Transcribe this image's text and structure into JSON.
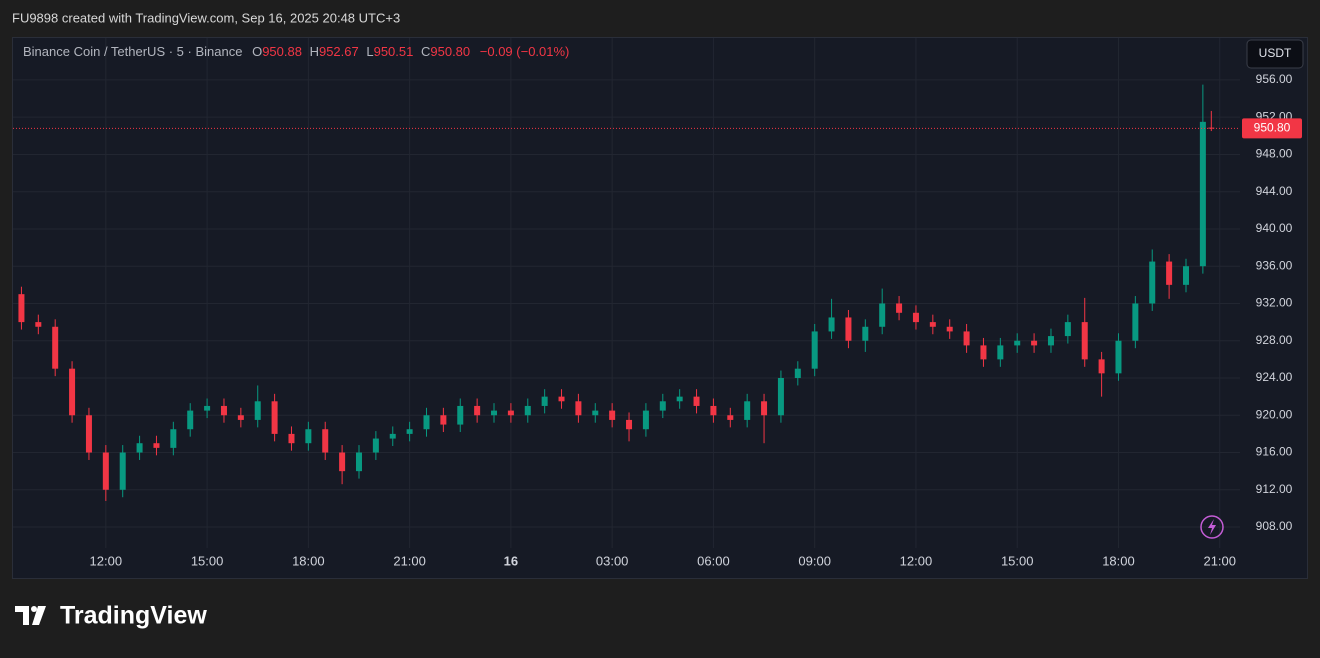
{
  "header": "FU9898 created with TradingView.com, Sep 16, 2025 20:48 UTC+3",
  "brand": "TradingView",
  "chart_data": {
    "type": "candlestick",
    "symbol": "Binance Coin / TetherUS · 5 · Binance",
    "ohlc_letters": [
      "O",
      "H",
      "L",
      "C"
    ],
    "last_labels": [
      "950.88",
      "952.67",
      "950.51",
      "950.80"
    ],
    "change": "−0.09 (−0.01%)",
    "currency": "USDT",
    "up_color": "#089981",
    "down_color": "#f23645",
    "grid": true,
    "x": [
      9.5,
      10,
      10.5,
      11,
      11.5,
      12,
      12.5,
      13,
      13.5,
      14,
      14.5,
      15,
      15.5,
      16,
      16.5,
      17,
      17.5,
      18,
      18.5,
      19,
      19.5,
      20,
      20.5,
      21,
      21.5,
      22,
      22.5,
      23,
      23.5,
      24,
      24.5,
      25,
      25.5,
      26,
      26.5,
      27,
      27.5,
      28,
      28.5,
      29,
      29.5,
      30,
      30.5,
      31,
      31.5,
      32,
      32.5,
      33,
      33.5,
      34,
      34.5,
      35,
      35.5,
      36,
      36.5,
      37,
      37.5,
      38,
      38.5,
      39,
      39.5,
      40,
      40.5,
      41,
      41.5,
      42,
      42.5,
      43,
      43.5,
      44,
      44.5,
      44.75
    ],
    "open": [
      933,
      930,
      929.5,
      925,
      920,
      916,
      912,
      916,
      917,
      916.5,
      918.5,
      920.5,
      921,
      920,
      919.5,
      921.5,
      918,
      917,
      918.5,
      916,
      914,
      916,
      917.5,
      918,
      918.5,
      920,
      919,
      921,
      920,
      920.5,
      920,
      921,
      922,
      921.5,
      920,
      920.5,
      919.5,
      918.5,
      920.5,
      921.5,
      922,
      921,
      920,
      919.5,
      921.5,
      920,
      924,
      925,
      929,
      930.5,
      928,
      929.5,
      932,
      931,
      930,
      929.5,
      929,
      927.5,
      926,
      927.5,
      928,
      927.5,
      928.5,
      930,
      926,
      924.5,
      928,
      932,
      936.5,
      934,
      936,
      950.88
    ],
    "high": [
      933.8,
      930.8,
      930.3,
      925.8,
      920.8,
      916.8,
      916.8,
      917.8,
      917.8,
      919.3,
      921.3,
      921.8,
      921.8,
      920.8,
      923.2,
      922.3,
      918.8,
      919.3,
      919.3,
      916.8,
      916.8,
      918.3,
      918.8,
      919.3,
      920.8,
      920.8,
      921.8,
      921.8,
      921.3,
      921.3,
      921.8,
      922.8,
      922.8,
      922.3,
      921.3,
      921.3,
      920.3,
      921.3,
      922.3,
      922.8,
      922.8,
      921.8,
      920.8,
      922.3,
      922.3,
      924.8,
      925.8,
      929.8,
      932.5,
      931.3,
      930.3,
      933.6,
      932.8,
      931.8,
      930.8,
      930.3,
      929.8,
      928.3,
      928.3,
      928.8,
      928.8,
      929.3,
      930.8,
      932.6,
      926.8,
      928.8,
      932.8,
      937.8,
      937.3,
      936.8,
      955.5,
      952.67
    ],
    "low": [
      929.2,
      928.7,
      924.2,
      919.2,
      915.2,
      910.8,
      911.2,
      915.2,
      915.7,
      915.7,
      917.7,
      919.7,
      919.2,
      918.7,
      918.7,
      917.2,
      916.2,
      916.2,
      915.2,
      912.6,
      913.2,
      915.2,
      916.7,
      917.2,
      917.7,
      918.2,
      918.2,
      919.2,
      919.2,
      919.2,
      919.2,
      920.2,
      920.7,
      919.2,
      919.2,
      918.7,
      917.2,
      917.7,
      919.7,
      920.7,
      920.2,
      919.2,
      918.7,
      918.7,
      917,
      919.2,
      923.2,
      924.2,
      928.2,
      927.2,
      926.8,
      928.7,
      930.2,
      929.2,
      928.7,
      928.2,
      926.7,
      925.2,
      925.2,
      926.7,
      926.7,
      926.7,
      927.7,
      925.2,
      922,
      923.7,
      927.2,
      931.2,
      932.5,
      933.2,
      935.2,
      950.51
    ],
    "close": [
      930,
      929.5,
      925,
      920,
      916,
      912,
      916,
      917,
      916.5,
      918.5,
      920.5,
      921,
      920,
      919.5,
      921.5,
      918,
      917,
      918.5,
      916,
      914,
      916,
      917.5,
      918,
      918.5,
      920,
      919,
      921,
      920,
      920.5,
      920,
      921,
      922,
      921.5,
      920,
      920.5,
      919.5,
      918.5,
      920.5,
      921.5,
      922,
      921,
      920,
      919.5,
      921.5,
      920,
      924,
      925,
      929,
      930.5,
      928,
      929.5,
      932,
      931,
      930,
      929.5,
      929,
      927.5,
      926,
      927.5,
      928,
      927.5,
      928.5,
      930,
      926,
      924.5,
      928,
      932,
      936.5,
      934,
      936,
      951.5,
      950.8
    ],
    "xlim": [
      9.25,
      45.6
    ],
    "xticks": [
      {
        "value": 12,
        "label": "12:00"
      },
      {
        "value": 15,
        "label": "15:00"
      },
      {
        "value": 18,
        "label": "18:00"
      },
      {
        "value": 21,
        "label": "21:00"
      },
      {
        "value": 24,
        "label": "16"
      },
      {
        "value": 27,
        "label": "03:00"
      },
      {
        "value": 30,
        "label": "06:00"
      },
      {
        "value": 33,
        "label": "09:00"
      },
      {
        "value": 36,
        "label": "12:00"
      },
      {
        "value": 39,
        "label": "15:00"
      },
      {
        "value": 42,
        "label": "18:00"
      },
      {
        "value": 45,
        "label": "21:00"
      }
    ],
    "ylim": [
      905.75,
      960.5
    ],
    "yticks": [
      {
        "value": 908,
        "label": "908.00"
      },
      {
        "value": 912,
        "label": "912.00"
      },
      {
        "value": 916,
        "label": "916.00"
      },
      {
        "value": 920,
        "label": "920.00"
      },
      {
        "value": 924,
        "label": "924.00"
      },
      {
        "value": 928,
        "label": "928.00"
      },
      {
        "value": 932,
        "label": "932.00"
      },
      {
        "value": 936,
        "label": "936.00"
      },
      {
        "value": 940,
        "label": "940.00"
      },
      {
        "value": 944,
        "label": "944.00"
      },
      {
        "value": 948,
        "label": "948.00"
      },
      {
        "value": 952,
        "label": "952.00"
      },
      {
        "value": 956,
        "label": "956.00"
      }
    ]
  }
}
